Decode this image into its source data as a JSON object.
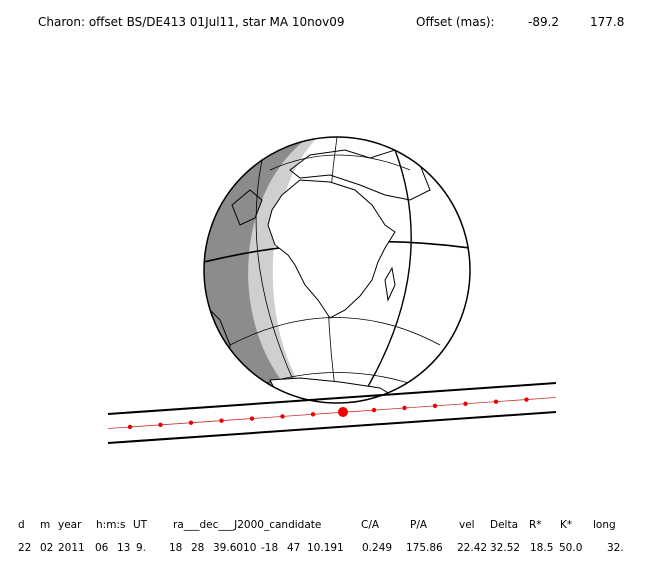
{
  "header": {
    "title": "Charon: offset BS/DE413 01Jul11, star MA 10nov09",
    "offset_label": "Offset (mas):",
    "offset_values": [
      "-89.2",
      "177.8"
    ]
  },
  "table": {
    "columns": [
      "d",
      "m",
      "year",
      "h:m:s",
      "UT",
      "ra___dec___J2000_candidate",
      "C/A",
      "P/A",
      "vel",
      "Delta",
      "R*",
      "K*",
      "long"
    ],
    "row": [
      "22",
      "02",
      "2011",
      "06",
      "13",
      "9.",
      "18",
      "28",
      "39.6010",
      "-18",
      "47",
      "10.191",
      "0.249",
      "175.86",
      "22.42",
      "32.52",
      "18.5",
      "50.0",
      "32."
    ]
  }
}
